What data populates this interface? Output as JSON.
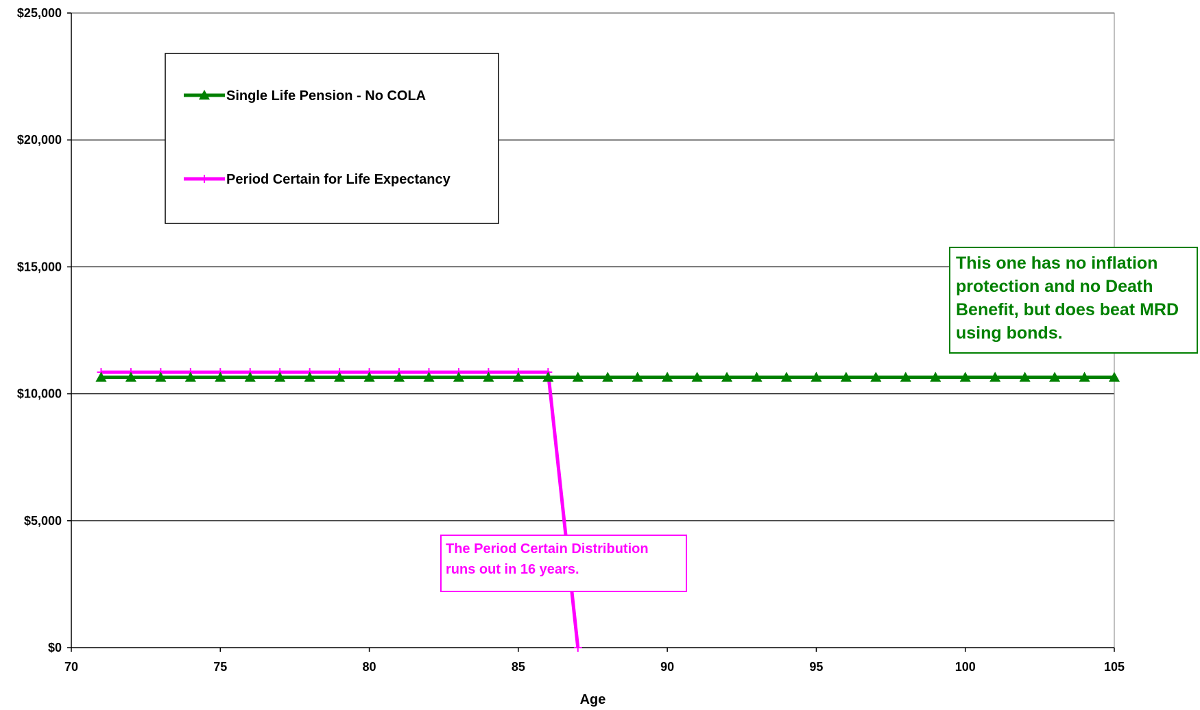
{
  "chart_data": {
    "type": "line",
    "title": "",
    "xlabel": "Age",
    "ylabel": "",
    "xlim": [
      70,
      105
    ],
    "ylim": [
      0,
      25000
    ],
    "x_ticks": [
      70,
      75,
      80,
      85,
      90,
      95,
      100,
      105
    ],
    "x_tick_labels": [
      "70",
      "75",
      "80",
      "85",
      "90",
      "95",
      "100",
      "105"
    ],
    "y_ticks": [
      0,
      5000,
      10000,
      15000,
      20000,
      25000
    ],
    "y_tick_labels": [
      "$0",
      "$5,000",
      "$10,000",
      "$15,000",
      "$20,000",
      "$25,000"
    ],
    "grid": "horizontal",
    "legend_position": "top-left",
    "series": [
      {
        "name": "Single Life Pension - No COLA",
        "color": "#008000",
        "marker": "triangle",
        "x": [
          71,
          72,
          73,
          74,
          75,
          76,
          77,
          78,
          79,
          80,
          81,
          82,
          83,
          84,
          85,
          86,
          87,
          88,
          89,
          90,
          91,
          92,
          93,
          94,
          95,
          96,
          97,
          98,
          99,
          100,
          101,
          102,
          103,
          104,
          105
        ],
        "values": [
          10650,
          10650,
          10650,
          10650,
          10650,
          10650,
          10650,
          10650,
          10650,
          10650,
          10650,
          10650,
          10650,
          10650,
          10650,
          10650,
          10650,
          10650,
          10650,
          10650,
          10650,
          10650,
          10650,
          10650,
          10650,
          10650,
          10650,
          10650,
          10650,
          10650,
          10650,
          10650,
          10650,
          10650,
          10650
        ]
      },
      {
        "name": "Period Certain for Life Expectancy",
        "color": "#ff00ff",
        "marker": "plus",
        "x": [
          71,
          72,
          73,
          74,
          75,
          76,
          77,
          78,
          79,
          80,
          81,
          82,
          83,
          84,
          85,
          86,
          87
        ],
        "values": [
          10850,
          10850,
          10850,
          10850,
          10850,
          10850,
          10850,
          10850,
          10850,
          10850,
          10850,
          10850,
          10850,
          10850,
          10850,
          10850,
          0
        ]
      }
    ],
    "annotations": [
      {
        "text": "This one has no inflation protection and no Death Benefit, but does beat MRD using bonds.",
        "color": "#008000"
      },
      {
        "text": "The Period Certain Distribution runs out in 16 years.",
        "color": "#ff00ff"
      }
    ]
  }
}
